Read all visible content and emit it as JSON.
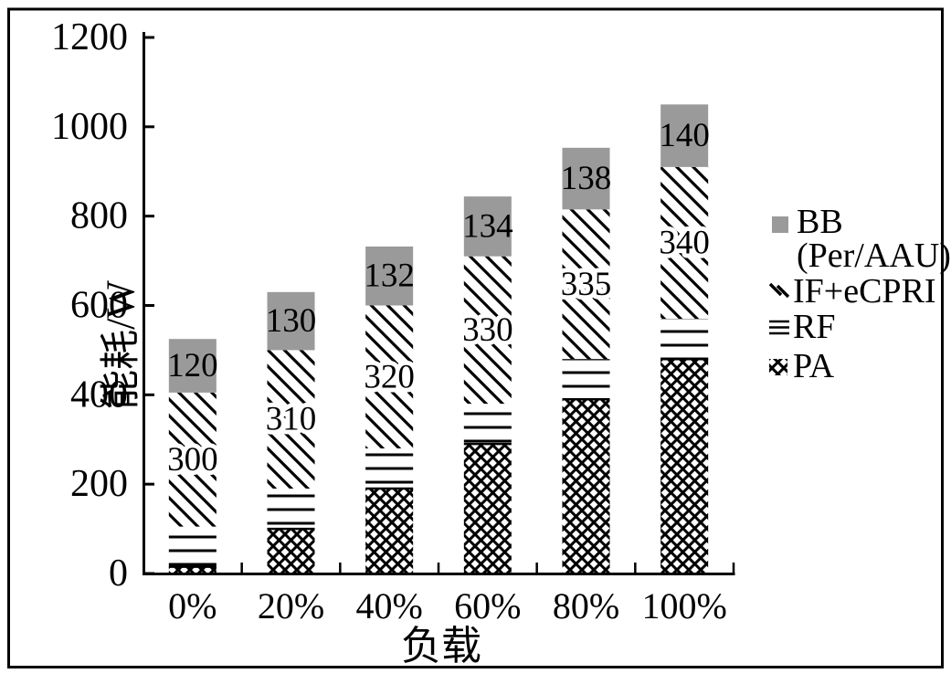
{
  "figure": {
    "background": "#ffffff",
    "border_color": "#000000"
  },
  "chart_data": {
    "type": "bar",
    "stacked": true,
    "title": "",
    "xlabel": "负载",
    "ylabel": "能耗/W",
    "categories": [
      "0%",
      "20%",
      "40%",
      "60%",
      "80%",
      "100%"
    ],
    "y_ticks": [
      "0",
      "200",
      "400",
      "600",
      "800",
      "1000",
      "1200"
    ],
    "ylim": [
      0,
      1200
    ],
    "grid": false,
    "legend_position": "right",
    "pattern_color": "#000000",
    "bb_fill": "#9a9a9a",
    "series": [
      {
        "name": "PA",
        "pattern": "crosshatch",
        "values": [
          15,
          100,
          190,
          290,
          390,
          480
        ]
      },
      {
        "name": "RF",
        "pattern": "horizontal-lines",
        "values": [
          90,
          90,
          90,
          90,
          90,
          90
        ]
      },
      {
        "name": "IF+eCPRI",
        "pattern": "diagonal-hatch",
        "values": [
          300,
          310,
          320,
          330,
          335,
          340
        ],
        "data_labels": [
          "300",
          "310",
          "320",
          "330",
          "335",
          "340"
        ]
      },
      {
        "name": "BB (Per/AAU)",
        "pattern": "solid-gray",
        "values": [
          120,
          130,
          132,
          134,
          138,
          140
        ],
        "data_labels": [
          "120",
          "130",
          "132",
          "134",
          "138",
          "140"
        ]
      }
    ]
  },
  "legend": {
    "items": [
      {
        "label": "BB",
        "label_line2": "(Per/AAU)",
        "marker": "gray-square"
      },
      {
        "label": "IF+eCPRI",
        "marker": "diagonal-hatch"
      },
      {
        "label": "RF",
        "marker": "horizontal-lines"
      },
      {
        "label": "PA",
        "marker": "crosshatch"
      }
    ]
  }
}
